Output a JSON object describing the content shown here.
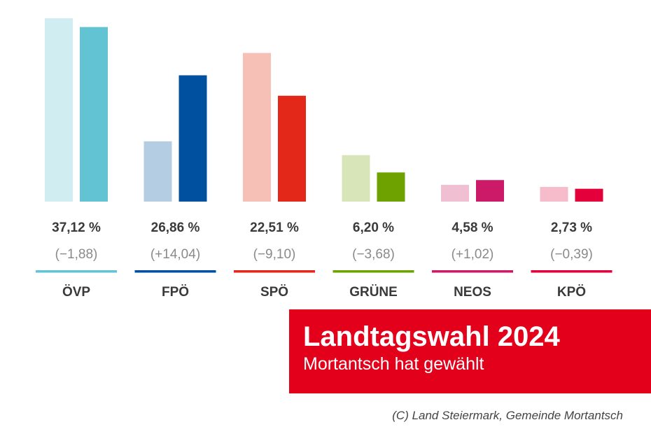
{
  "chart_data": {
    "type": "bar",
    "categories": [
      "ÖVP",
      "FPÖ",
      "SPÖ",
      "GRÜNE",
      "NEOS",
      "KPÖ"
    ],
    "series": [
      {
        "values": [
          38.99,
          12.82,
          31.61,
          9.88,
          3.56,
          3.12
        ]
      },
      {
        "values": [
          37.12,
          26.86,
          22.51,
          6.2,
          4.58,
          2.73
        ]
      }
    ],
    "value_labels": [
      "37,12 %",
      "26,86 %",
      "22,51 %",
      "6,20 %",
      "4,58 %",
      "2,73 %"
    ],
    "change_labels": [
      "(−1,88)",
      "(+14,04)",
      "(−9,10)",
      "(−3,68)",
      "(+1,02)",
      "(−0,39)"
    ],
    "colors": {
      "current": [
        "#62c3d3",
        "#0050a0",
        "#e32719",
        "#6da200",
        "#cc1a69",
        "#e4003a"
      ],
      "previous": [
        "#d0edf1",
        "#b5cde3",
        "#f6c0b7",
        "#d8e5b8",
        "#f0bfd2",
        "#f6bccb"
      ]
    },
    "ylim": [
      0,
      39
    ],
    "grid": false,
    "legend": "none"
  },
  "title": "Landtagswahl 2024",
  "subtitle": "Mortantsch hat gewählt",
  "credit": "(C) Land Steiermark, Gemeinde Mortantsch",
  "colors": {
    "title_box": "#e2001a",
    "title_text": "#ffffff"
  }
}
